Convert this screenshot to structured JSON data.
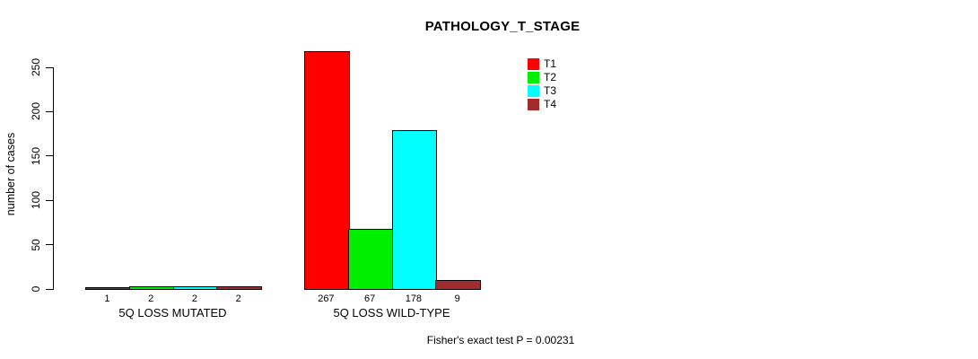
{
  "chart_data": {
    "type": "bar",
    "title": "PATHOLOGY_T_STAGE",
    "ylabel": "number of cases",
    "xlabel": "",
    "ylim": [
      0,
      250
    ],
    "yticks": [
      0,
      50,
      100,
      150,
      200,
      250
    ],
    "grid": false,
    "legend_position": "inside-top-right",
    "bar_value_labels": true,
    "categories": [
      "5Q LOSS MUTATED",
      "5Q LOSS WILD-TYPE"
    ],
    "series": [
      {
        "name": "T1",
        "color": "#FF0000",
        "values": [
          1,
          267
        ]
      },
      {
        "name": "T2",
        "color": "#00EE00",
        "values": [
          2,
          67
        ]
      },
      {
        "name": "T3",
        "color": "#00FFFF",
        "values": [
          2,
          178
        ]
      },
      {
        "name": "T4",
        "color": "#A22B2B",
        "values": [
          2,
          9
        ]
      }
    ],
    "annotation": "Fisher's exact test P = 0.00231"
  }
}
